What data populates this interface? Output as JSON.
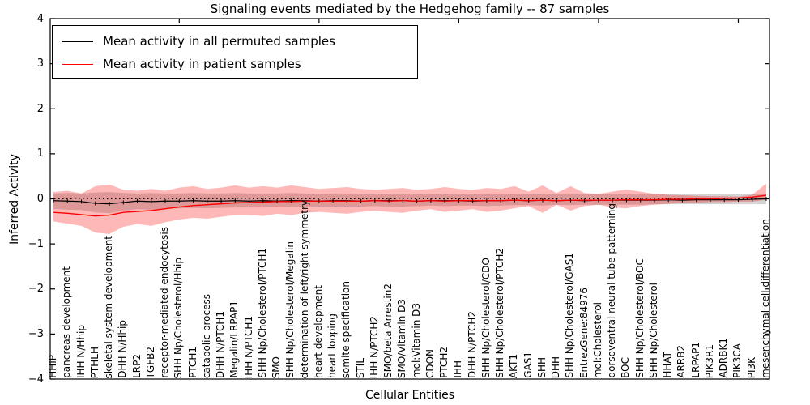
{
  "chart_data": {
    "type": "line",
    "title": "Signaling events mediated by the Hedgehog family -- 87 samples",
    "xlabel": "Cellular Entities",
    "ylabel": "Inferred Activity",
    "ylim": [
      -4,
      4
    ],
    "ytick_labels": [
      "4",
      "3",
      "2",
      "1",
      "0",
      "−1",
      "−2",
      "−3",
      "−4"
    ],
    "ytick_values": [
      4,
      3,
      2,
      1,
      0,
      -1,
      -2,
      -3,
      -4
    ],
    "top_tick_indices": [
      9,
      19,
      29,
      39,
      49
    ],
    "grid": false,
    "legend_position": "upper left",
    "zero_line": "dotted black at y=0",
    "categories": [
      "HHIP",
      "pancreas development",
      "IHH N/Hhip",
      "PTHLH",
      "skeletal system development",
      "DHH N/Hhip",
      "LRP2",
      "TGFB2",
      "receptor-mediated endocytosis",
      "SHH Np/Cholesterol/Hhip",
      "PTCH1",
      "catabolic process",
      "DHH N/PTCH1",
      "Megalin/LRPAP1",
      "IHH N/PTCH1",
      "SHH Np/Cholesterol/PTCH1",
      "SMO",
      "SHH Np/Cholesterol/Megalin",
      "determination of left/right symmetry",
      "heart development",
      "heart looping",
      "somite specification",
      "STIL",
      "IHH N/PTCH2",
      "SMO/beta Arrestin2",
      "SMO/Vitamin D3",
      "mol:Vitamin D3",
      "CDON",
      "PTCH2",
      "IHH",
      "DHH N/PTCH2",
      "SHH Np/Cholesterol/CDO",
      "SHH Np/Cholesterol/PTCH2",
      "AKT1",
      "GAS1",
      "SHH",
      "DHH",
      "SHH Np/Cholesterol/GAS1",
      "EntrezGene:84976",
      "mol:Cholesterol",
      "dorsoventral neural tube patterning",
      "BOC",
      "SHH Np/Cholesterol/BOC",
      "SHH Np/Cholesterol",
      "HHAT",
      "ARRB2",
      "LRPAP1",
      "PIK3R1",
      "ADRBK1",
      "PIK3CA",
      "PI3K",
      "mesenchymal cell differentiation"
    ],
    "series": [
      {
        "name": "Mean activity in all permuted samples",
        "color": "#000000",
        "marker": "small vertical tick at each point",
        "values": [
          -0.04,
          -0.05,
          -0.06,
          -0.1,
          -0.11,
          -0.08,
          -0.05,
          -0.06,
          -0.05,
          -0.05,
          -0.04,
          -0.05,
          -0.05,
          -0.04,
          -0.05,
          -0.04,
          -0.05,
          -0.04,
          -0.04,
          -0.05,
          -0.04,
          -0.04,
          -0.05,
          -0.04,
          -0.04,
          -0.04,
          -0.05,
          -0.04,
          -0.04,
          -0.04,
          -0.05,
          -0.04,
          -0.04,
          -0.03,
          -0.04,
          -0.03,
          -0.04,
          -0.03,
          -0.04,
          -0.03,
          -0.03,
          -0.03,
          -0.03,
          -0.03,
          -0.02,
          -0.03,
          -0.02,
          -0.02,
          -0.02,
          -0.02,
          -0.01,
          0.0
        ]
      },
      {
        "name": "Mean activity in patient samples",
        "color": "#ff0000",
        "marker": "none",
        "values": [
          -0.3,
          -0.32,
          -0.35,
          -0.38,
          -0.36,
          -0.3,
          -0.28,
          -0.26,
          -0.22,
          -0.18,
          -0.15,
          -0.13,
          -0.11,
          -0.09,
          -0.08,
          -0.07,
          -0.06,
          -0.06,
          -0.05,
          -0.05,
          -0.05,
          -0.05,
          -0.05,
          -0.04,
          -0.05,
          -0.04,
          -0.05,
          -0.04,
          -0.05,
          -0.04,
          -0.04,
          -0.04,
          -0.04,
          -0.03,
          -0.04,
          -0.03,
          -0.04,
          -0.03,
          -0.03,
          -0.03,
          -0.03,
          -0.02,
          -0.02,
          -0.02,
          -0.01,
          -0.01,
          0.0,
          0.0,
          0.01,
          0.02,
          0.04,
          0.08
        ]
      }
    ],
    "bands": [
      {
        "name": "permuted samples std band",
        "fill": "rgba(110,110,110,0.30)",
        "upper": [
          0.12,
          0.13,
          0.12,
          0.14,
          0.15,
          0.13,
          0.12,
          0.13,
          0.12,
          0.12,
          0.13,
          0.12,
          0.12,
          0.13,
          0.12,
          0.12,
          0.12,
          0.13,
          0.12,
          0.11,
          0.12,
          0.12,
          0.11,
          0.11,
          0.11,
          0.12,
          0.11,
          0.11,
          0.12,
          0.11,
          0.11,
          0.12,
          0.11,
          0.12,
          0.1,
          0.12,
          0.1,
          0.12,
          0.1,
          0.1,
          0.11,
          0.11,
          0.1,
          0.1,
          0.1,
          0.1,
          0.1,
          0.1,
          0.1,
          0.1,
          0.1,
          0.1
        ],
        "lower": [
          -0.22,
          -0.24,
          -0.25,
          -0.3,
          -0.32,
          -0.26,
          -0.23,
          -0.24,
          -0.22,
          -0.21,
          -0.2,
          -0.21,
          -0.2,
          -0.19,
          -0.19,
          -0.19,
          -0.18,
          -0.19,
          -0.18,
          -0.17,
          -0.18,
          -0.18,
          -0.17,
          -0.16,
          -0.17,
          -0.17,
          -0.16,
          -0.15,
          -0.16,
          -0.15,
          -0.15,
          -0.16,
          -0.15,
          -0.14,
          -0.14,
          -0.15,
          -0.13,
          -0.14,
          -0.13,
          -0.13,
          -0.13,
          -0.13,
          -0.13,
          -0.12,
          -0.12,
          -0.12,
          -0.12,
          -0.12,
          -0.12,
          -0.12,
          -0.12,
          -0.12
        ]
      },
      {
        "name": "patient samples std band",
        "fill": "rgba(255,0,0,0.28)",
        "upper": [
          0.15,
          0.18,
          0.12,
          0.28,
          0.32,
          0.2,
          0.18,
          0.22,
          0.18,
          0.25,
          0.28,
          0.22,
          0.25,
          0.3,
          0.25,
          0.28,
          0.25,
          0.3,
          0.26,
          0.22,
          0.24,
          0.26,
          0.22,
          0.2,
          0.22,
          0.24,
          0.2,
          0.22,
          0.26,
          0.22,
          0.2,
          0.24,
          0.22,
          0.28,
          0.16,
          0.3,
          0.13,
          0.28,
          0.13,
          0.11,
          0.16,
          0.21,
          0.16,
          0.11,
          0.09,
          0.08,
          0.07,
          0.06,
          0.06,
          0.05,
          0.09,
          0.34
        ],
        "lower": [
          -0.5,
          -0.55,
          -0.6,
          -0.75,
          -0.78,
          -0.62,
          -0.56,
          -0.6,
          -0.52,
          -0.46,
          -0.42,
          -0.44,
          -0.4,
          -0.36,
          -0.36,
          -0.38,
          -0.33,
          -0.36,
          -0.31,
          -0.29,
          -0.31,
          -0.33,
          -0.29,
          -0.26,
          -0.29,
          -0.31,
          -0.26,
          -0.23,
          -0.29,
          -0.26,
          -0.23,
          -0.29,
          -0.26,
          -0.21,
          -0.16,
          -0.31,
          -0.13,
          -0.26,
          -0.16,
          -0.13,
          -0.19,
          -0.21,
          -0.16,
          -0.13,
          -0.11,
          -0.09,
          -0.09,
          -0.07,
          -0.07,
          -0.06,
          -0.06,
          -0.02
        ]
      }
    ]
  },
  "legend": {
    "entries": [
      {
        "label": "Mean activity in all permuted samples",
        "color": "#000000"
      },
      {
        "label": "Mean activity in patient samples",
        "color": "#ff0000"
      }
    ]
  }
}
